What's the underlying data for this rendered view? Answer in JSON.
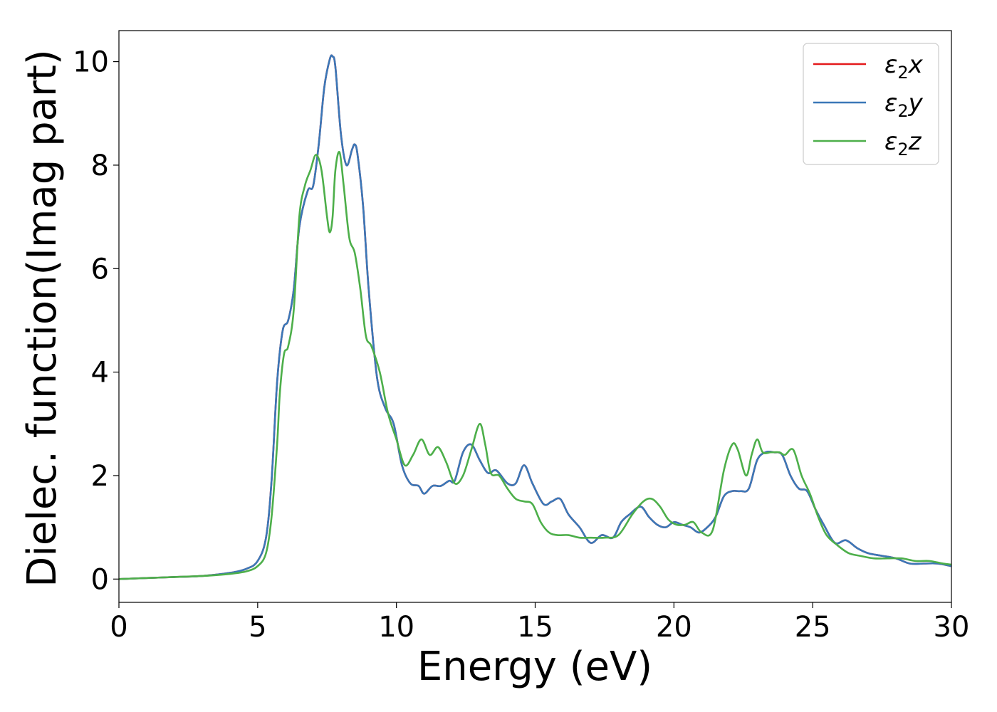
{
  "chart_data": {
    "type": "line",
    "xlabel": "Energy (eV)",
    "ylabel": "Dielec. function(Imag part)",
    "xlim": [
      0,
      30
    ],
    "ylim": [
      -0.45,
      10.6
    ],
    "xticks": [
      0,
      5,
      10,
      15,
      20,
      25,
      30
    ],
    "xtick_labels": [
      "0",
      "5",
      "10",
      "15",
      "20",
      "25",
      "30"
    ],
    "yticks": [
      0,
      2,
      4,
      6,
      8,
      10
    ],
    "ytick_labels": [
      "0",
      "2",
      "4",
      "6",
      "8",
      "10"
    ],
    "grid": false,
    "legend_position": "top-right",
    "series": [
      {
        "name": "ε2x",
        "label_main": "ε",
        "label_sub": "2",
        "label_tail": "x",
        "color": "#e41a1c",
        "x": [
          0,
          1,
          2,
          3,
          4,
          4.6,
          5.0,
          5.3,
          5.5,
          5.7,
          5.9,
          6.1,
          6.3,
          6.5,
          6.8,
          7.0,
          7.2,
          7.4,
          7.6,
          7.7,
          7.8,
          8.0,
          8.2,
          8.4,
          8.5,
          8.6,
          8.8,
          9.0,
          9.3,
          9.6,
          9.9,
          10.2,
          10.5,
          10.8,
          11.0,
          11.3,
          11.6,
          11.9,
          12.1,
          12.4,
          12.7,
          13.0,
          13.3,
          13.6,
          14.0,
          14.3,
          14.6,
          14.9,
          15.3,
          15.6,
          15.9,
          16.2,
          16.6,
          17.0,
          17.4,
          17.8,
          18.1,
          18.4,
          18.8,
          19.1,
          19.4,
          19.7,
          20.0,
          20.3,
          20.6,
          20.9,
          21.2,
          21.5,
          21.8,
          22.1,
          22.4,
          22.7,
          23.0,
          23.3,
          23.6,
          23.9,
          24.2,
          24.5,
          24.8,
          25.1,
          25.4,
          25.8,
          26.2,
          26.6,
          27.0,
          27.5,
          28.0,
          28.5,
          29.0,
          29.5,
          30.0
        ],
        "values": [
          0,
          0.02,
          0.04,
          0.06,
          0.12,
          0.2,
          0.35,
          0.8,
          1.9,
          3.8,
          4.8,
          5.0,
          5.6,
          6.8,
          7.5,
          7.6,
          8.4,
          9.5,
          10.05,
          10.1,
          9.9,
          8.6,
          8.0,
          8.3,
          8.4,
          8.2,
          7.2,
          5.6,
          3.9,
          3.3,
          3.0,
          2.2,
          1.85,
          1.8,
          1.65,
          1.8,
          1.8,
          1.9,
          1.9,
          2.45,
          2.6,
          2.3,
          2.05,
          2.1,
          1.85,
          1.85,
          2.2,
          1.85,
          1.45,
          1.5,
          1.55,
          1.25,
          1.0,
          0.7,
          0.85,
          0.8,
          1.1,
          1.25,
          1.4,
          1.2,
          1.05,
          1.0,
          1.1,
          1.05,
          1.0,
          0.9,
          1.0,
          1.2,
          1.6,
          1.7,
          1.7,
          1.75,
          2.3,
          2.45,
          2.45,
          2.4,
          2.0,
          1.75,
          1.7,
          1.35,
          1.05,
          0.7,
          0.75,
          0.6,
          0.5,
          0.45,
          0.4,
          0.3,
          0.3,
          0.3,
          0.25
        ]
      },
      {
        "name": "ε2y",
        "label_main": "ε",
        "label_sub": "2",
        "label_tail": "y",
        "color": "#3a78b8",
        "x": [
          0,
          1,
          2,
          3,
          4,
          4.6,
          5.0,
          5.3,
          5.5,
          5.7,
          5.9,
          6.1,
          6.3,
          6.5,
          6.8,
          7.0,
          7.2,
          7.4,
          7.6,
          7.7,
          7.8,
          8.0,
          8.2,
          8.4,
          8.5,
          8.6,
          8.8,
          9.0,
          9.3,
          9.6,
          9.9,
          10.2,
          10.5,
          10.8,
          11.0,
          11.3,
          11.6,
          11.9,
          12.1,
          12.4,
          12.7,
          13.0,
          13.3,
          13.6,
          14.0,
          14.3,
          14.6,
          14.9,
          15.3,
          15.6,
          15.9,
          16.2,
          16.6,
          17.0,
          17.4,
          17.8,
          18.1,
          18.4,
          18.8,
          19.1,
          19.4,
          19.7,
          20.0,
          20.3,
          20.6,
          20.9,
          21.2,
          21.5,
          21.8,
          22.1,
          22.4,
          22.7,
          23.0,
          23.3,
          23.6,
          23.9,
          24.2,
          24.5,
          24.8,
          25.1,
          25.4,
          25.8,
          26.2,
          26.6,
          27.0,
          27.5,
          28.0,
          28.5,
          29.0,
          29.5,
          30.0
        ],
        "values": [
          0,
          0.02,
          0.04,
          0.06,
          0.12,
          0.2,
          0.35,
          0.8,
          1.9,
          3.8,
          4.8,
          5.0,
          5.6,
          6.8,
          7.5,
          7.6,
          8.4,
          9.5,
          10.05,
          10.1,
          9.9,
          8.6,
          8.0,
          8.3,
          8.4,
          8.2,
          7.2,
          5.6,
          3.9,
          3.3,
          3.0,
          2.2,
          1.85,
          1.8,
          1.65,
          1.8,
          1.8,
          1.9,
          1.9,
          2.45,
          2.6,
          2.3,
          2.05,
          2.1,
          1.85,
          1.85,
          2.2,
          1.85,
          1.45,
          1.5,
          1.55,
          1.25,
          1.0,
          0.7,
          0.85,
          0.8,
          1.1,
          1.25,
          1.4,
          1.2,
          1.05,
          1.0,
          1.1,
          1.05,
          1.0,
          0.9,
          1.0,
          1.2,
          1.6,
          1.7,
          1.7,
          1.75,
          2.3,
          2.45,
          2.45,
          2.4,
          2.0,
          1.75,
          1.7,
          1.35,
          1.05,
          0.7,
          0.75,
          0.6,
          0.5,
          0.45,
          0.4,
          0.3,
          0.3,
          0.3,
          0.25
        ]
      },
      {
        "name": "ε2z",
        "label_main": "ε",
        "label_sub": "2",
        "label_tail": "z",
        "color": "#4daf4a",
        "x": [
          0,
          1,
          2,
          3,
          4,
          4.6,
          5.0,
          5.3,
          5.5,
          5.7,
          5.8,
          5.95,
          6.1,
          6.3,
          6.5,
          6.7,
          6.9,
          7.1,
          7.3,
          7.5,
          7.6,
          7.7,
          7.8,
          7.95,
          8.1,
          8.3,
          8.5,
          8.7,
          8.9,
          9.1,
          9.4,
          9.7,
          10.0,
          10.3,
          10.6,
          10.9,
          11.2,
          11.5,
          11.8,
          12.1,
          12.4,
          12.7,
          13.0,
          13.2,
          13.4,
          13.7,
          14.0,
          14.3,
          14.6,
          14.9,
          15.2,
          15.5,
          15.8,
          16.2,
          16.6,
          17.0,
          17.5,
          18.0,
          18.5,
          18.9,
          19.2,
          19.5,
          19.8,
          20.1,
          20.4,
          20.7,
          21.0,
          21.4,
          21.8,
          22.1,
          22.3,
          22.6,
          22.8,
          23.0,
          23.2,
          23.5,
          23.8,
          24.0,
          24.3,
          24.6,
          24.9,
          25.2,
          25.5,
          25.9,
          26.3,
          26.7,
          27.2,
          27.7,
          28.2,
          28.7,
          29.2,
          29.7,
          30.0
        ],
        "values": [
          0,
          0.02,
          0.04,
          0.06,
          0.1,
          0.15,
          0.25,
          0.5,
          1.2,
          2.6,
          3.6,
          4.35,
          4.5,
          5.2,
          7.0,
          7.6,
          7.9,
          8.2,
          7.9,
          7.0,
          6.7,
          7.0,
          7.9,
          8.25,
          7.6,
          6.6,
          6.3,
          5.6,
          4.7,
          4.5,
          4.0,
          3.2,
          2.7,
          2.2,
          2.4,
          2.7,
          2.4,
          2.55,
          2.25,
          1.85,
          2.0,
          2.5,
          3.0,
          2.6,
          2.05,
          2.0,
          1.75,
          1.55,
          1.5,
          1.45,
          1.1,
          0.9,
          0.85,
          0.85,
          0.8,
          0.8,
          0.8,
          0.85,
          1.25,
          1.5,
          1.55,
          1.4,
          1.15,
          1.05,
          1.05,
          1.1,
          0.9,
          0.95,
          2.1,
          2.6,
          2.5,
          2.0,
          2.4,
          2.7,
          2.45,
          2.45,
          2.45,
          2.4,
          2.5,
          2.0,
          1.65,
          1.2,
          0.85,
          0.65,
          0.5,
          0.45,
          0.4,
          0.4,
          0.4,
          0.35,
          0.35,
          0.3,
          0.28
        ]
      }
    ]
  }
}
